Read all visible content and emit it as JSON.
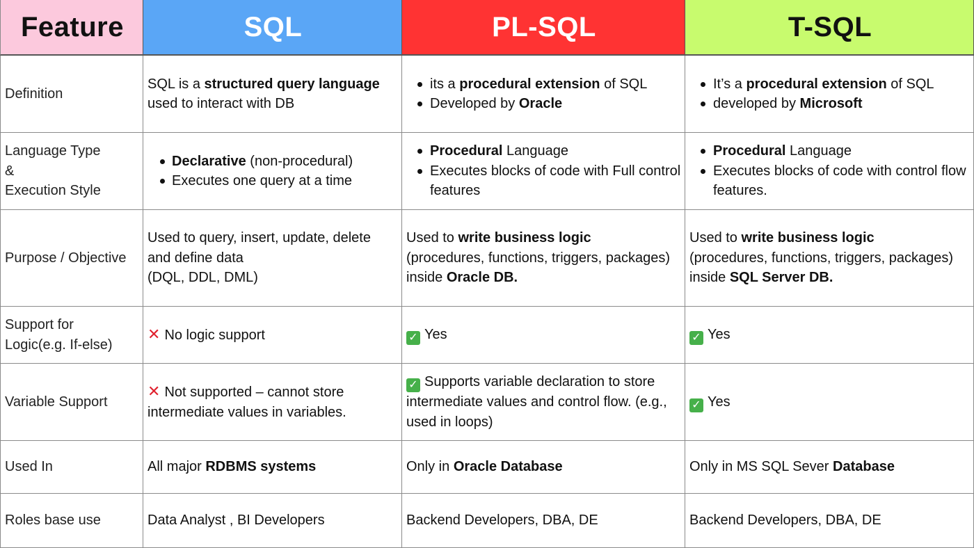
{
  "header": {
    "feature": "Feature",
    "sql": "SQL",
    "plsql": "PL-SQL",
    "tsql": "T-SQL"
  },
  "rows": {
    "definition": {
      "label": "Definition",
      "sql": {
        "t1": "SQL is a ",
        "b1": "structured query language",
        "t2": "used to interact with DB"
      },
      "plsql": {
        "l1a": "its a ",
        "l1b": "procedural extension",
        "l1c": " of SQL",
        "l2a": "Developed by ",
        "l2b": "Oracle"
      },
      "tsql": {
        "l1a": "It’s a ",
        "l1b": "procedural extension",
        "l1c": " of SQL",
        "l2a": "developed by ",
        "l2b": "Microsoft"
      }
    },
    "language": {
      "label1": "Language Type",
      "label2": "&",
      "label3": "Execution Style",
      "sql": {
        "l1a": "Declarative",
        "l1b": " (non-procedural)",
        "l2": "Executes one query at a time"
      },
      "plsql": {
        "l1a": "Procedural",
        "l1b": " Language",
        "l2": "Executes blocks of code with Full control features"
      },
      "tsql": {
        "l1a": "Procedural",
        "l1b": " Language",
        "l2": "Executes blocks of code with control flow features."
      }
    },
    "purpose": {
      "label": "Purpose / Objective",
      "sql": {
        "l1": "Used to query, insert, update, delete",
        "l2": "and define data",
        "l3": "(DQL, DDL, DML)"
      },
      "plsql": {
        "a": "Used to ",
        "b": "write business logic",
        "c": "(procedures, functions, triggers, packages) inside ",
        "d": "Oracle DB."
      },
      "tsql": {
        "a": "Used to ",
        "b": "write business logic",
        "c": "(procedures, functions, triggers, packages) inside ",
        "d": "SQL Server DB."
      }
    },
    "logic": {
      "label1": "Support for",
      "label2": "Logic(e.g. If-else)",
      "sql": {
        "icon": "cross-mark-icon",
        "text": "No logic support"
      },
      "plsql": {
        "icon": "check-mark-icon",
        "text": "Yes"
      },
      "tsql": {
        "icon": "check-mark-icon",
        "text": "Yes"
      }
    },
    "variable": {
      "label": "Variable Support",
      "sql": {
        "icon": "cross-mark-icon",
        "text": "Not supported – cannot store intermediate values in variables."
      },
      "plsql": {
        "icon": "check-mark-icon",
        "text": "Supports variable declaration to store intermediate values and control flow. (e.g., used in loops)"
      },
      "tsql": {
        "icon": "check-mark-icon",
        "text": "Yes"
      }
    },
    "usedin": {
      "label": "Used In",
      "sql": {
        "a": "All major ",
        "b": "RDBMS systems"
      },
      "plsql": {
        "a": "Only in ",
        "b": "Oracle Database"
      },
      "tsql": {
        "a": "Only in MS SQL Sever ",
        "b": "Database"
      }
    },
    "roles": {
      "label": "Roles base use",
      "sql": "Data Analyst , BI Developers",
      "plsql": "Backend Developers, DBA, DE",
      "tsql": "Backend Developers, DBA, DE"
    }
  },
  "colors": {
    "feature_header": "#fcc9dd",
    "sql_header": "#5aa6f6",
    "plsql_header": "#ff3333",
    "tsql_header": "#c8fb6e",
    "cross": "#e0212e",
    "check": "#46b04a"
  }
}
